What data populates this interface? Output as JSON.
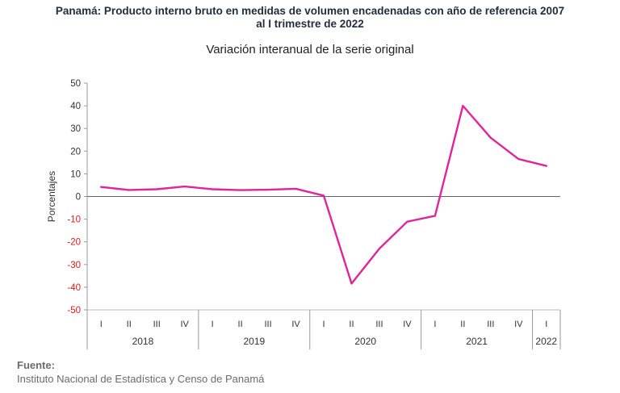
{
  "chart_data": {
    "type": "line",
    "title_line1": "Panamá: Producto interno bruto en medidas  de volumen encadenadas con año de referencia 2007",
    "title_line2": "al I trimestre de 2022",
    "subtitle": "Variación interanual de la serie original",
    "ylabel": "Porcentajes",
    "ylim": [
      -50,
      50
    ],
    "yticks": [
      50,
      40,
      30,
      20,
      10,
      0,
      -10,
      -20,
      -30,
      -40,
      -50
    ],
    "quarters": [
      "I",
      "II",
      "III",
      "IV",
      "I",
      "II",
      "III",
      "IV",
      "I",
      "II",
      "III",
      "IV",
      "I",
      "II",
      "III",
      "IV",
      "I"
    ],
    "years": [
      {
        "label": "2018",
        "count": 4
      },
      {
        "label": "2019",
        "count": 4
      },
      {
        "label": "2020",
        "count": 4
      },
      {
        "label": "2021",
        "count": 4
      },
      {
        "label": "2022",
        "count": 1
      }
    ],
    "series": [
      {
        "values": [
          4.2,
          2.9,
          3.2,
          4.4,
          3.2,
          2.8,
          3.0,
          3.4,
          0.4,
          -38.4,
          -23.0,
          -11.1,
          -8.5,
          40.0,
          25.9,
          16.5,
          13.5
        ]
      }
    ],
    "line_color": "#e0259b",
    "negative_tick_color": "#e31a1c",
    "positive_tick_color": "#333333",
    "grid": false
  },
  "source": {
    "label": "Fuente:",
    "text": "Instituto Nacional de Estadística y Censo de Panamá"
  }
}
